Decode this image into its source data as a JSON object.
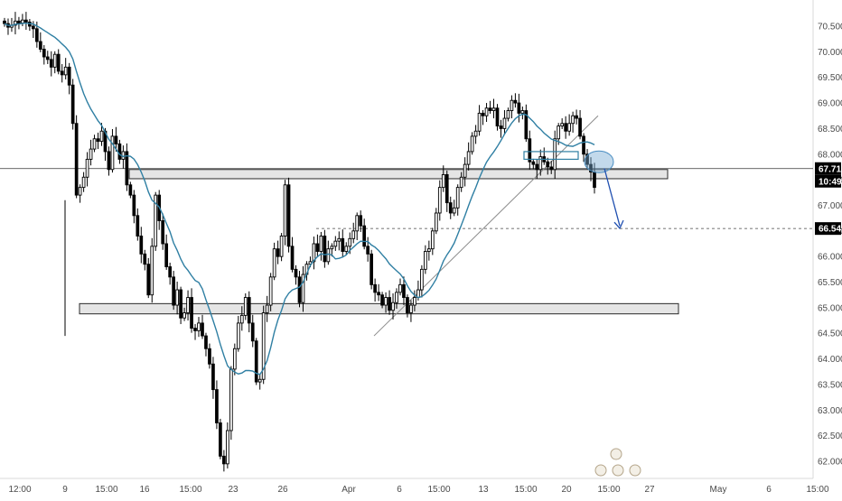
{
  "chart_data": {
    "type": "candlestick",
    "y_axis": {
      "ticks": [
        "70.500",
        "70.000",
        "69.500",
        "69.000",
        "68.500",
        "68.000",
        "67.500",
        "67.000",
        "66.500",
        "66.000",
        "65.500",
        "65.000",
        "64.500",
        "64.000",
        "63.500",
        "63.000",
        "62.500",
        "62.000"
      ],
      "range": [
        61.75,
        70.8
      ]
    },
    "x_axis": {
      "ticks": [
        "12:00",
        "9",
        "15:00",
        "16",
        "15:00",
        "23",
        "26",
        "Apr",
        "6",
        "15:00",
        "13",
        "15:00",
        "20",
        "15:00",
        "27",
        "May",
        "6",
        "15:00"
      ]
    },
    "price_tags": {
      "last_price": "67.718",
      "countdown": "10:49",
      "target": "66.547"
    },
    "moving_average_color": "#2f7fa3",
    "bar_color": "#000000",
    "zones": [
      {
        "name": "resistance-zone",
        "from": 67.52,
        "to": 67.7
      },
      {
        "name": "support-zone",
        "from": 64.88,
        "to": 65.08
      }
    ],
    "trendline": {
      "from": 64.45,
      "to": 68.75
    },
    "target_level": 66.547,
    "current_level": 67.718,
    "series": [
      {
        "values": [
          70.55,
          70.48,
          70.52,
          70.6,
          70.56,
          70.62,
          70.58,
          70.5,
          70.45,
          70.2,
          70.05,
          69.9,
          69.85,
          69.7,
          69.95,
          69.62,
          69.55,
          69.7,
          69.35,
          68.6,
          67.2,
          67.35,
          67.55,
          67.9,
          68.1,
          68.3,
          68.25,
          68.45,
          68.05,
          67.7,
          68.35,
          68.2,
          67.9,
          68.05,
          67.4,
          67.2,
          66.8,
          66.4,
          66.05,
          65.85,
          65.25,
          66.2,
          67.2,
          66.7,
          66.25,
          65.8,
          65.6,
          65.05,
          65.35,
          64.8,
          64.9,
          65.2,
          64.6,
          64.55,
          64.7,
          64.45,
          64.2,
          63.9,
          63.4,
          62.75,
          62.1,
          61.95,
          62.6,
          63.8,
          64.2,
          64.7,
          64.85,
          65.2,
          64.7,
          64.35,
          63.55,
          63.6,
          64.9,
          65.05,
          65.6,
          66.15,
          66.0,
          66.4,
          67.4,
          66.2,
          65.75,
          65.6,
          65.1,
          65.65,
          65.85,
          65.9,
          66.25,
          66.1,
          66.4,
          65.9,
          66.15,
          66.2,
          66.3,
          66.35,
          66.1,
          66.2,
          66.35,
          66.5,
          66.8,
          66.6,
          66.2,
          66.05,
          65.45,
          65.3,
          65.25,
          65.05,
          65.2,
          64.95,
          65.1,
          65.3,
          65.45,
          65.2,
          64.9,
          65.05,
          65.2,
          65.35,
          65.75,
          66.1,
          66.15,
          66.5,
          66.85,
          67.35,
          67.6,
          67.05,
          66.85,
          66.95,
          67.35,
          67.55,
          67.8,
          68.05,
          68.35,
          68.45,
          68.8,
          68.75,
          68.9,
          68.85,
          68.9,
          68.55,
          68.5,
          68.7,
          68.85,
          69.05,
          69.0,
          68.8,
          68.85,
          68.3,
          67.85,
          67.8,
          67.7,
          67.95,
          67.85,
          67.75,
          67.7,
          68.3,
          68.55,
          68.6,
          68.45,
          68.6,
          68.75,
          68.7,
          68.35,
          68.0,
          67.8,
          67.65,
          67.35
        ]
      }
    ]
  }
}
